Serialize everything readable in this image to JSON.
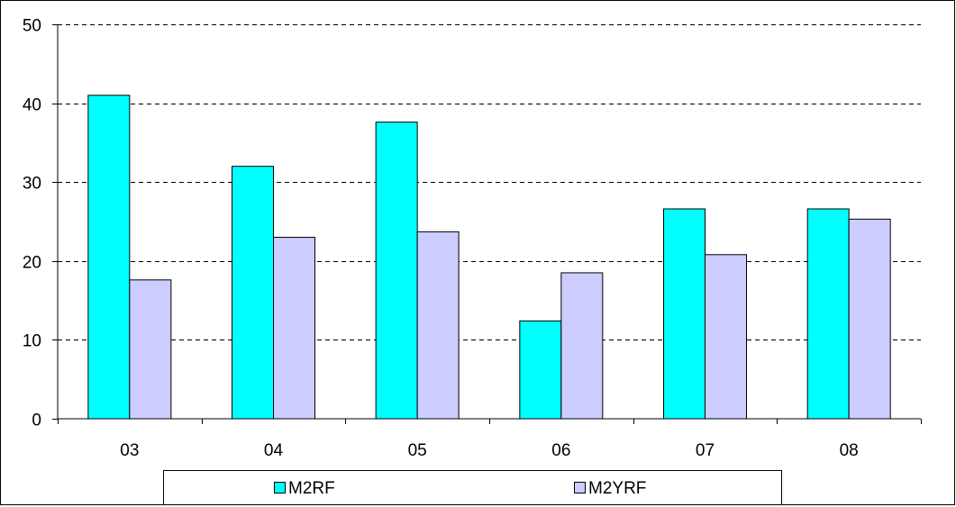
{
  "chart_data": {
    "type": "bar",
    "title": "",
    "xlabel": "",
    "ylabel": "",
    "categories": [
      "03",
      "04",
      "05",
      "06",
      "07",
      "08"
    ],
    "series": [
      {
        "name": "M2RF",
        "color": "#00FFFF",
        "values": [
          41.0,
          32.0,
          37.6,
          12.4,
          26.6,
          26.6
        ]
      },
      {
        "name": "M2YRF",
        "color": "#CCCCFF",
        "values": [
          17.6,
          23.0,
          23.7,
          18.5,
          20.8,
          25.3
        ]
      }
    ],
    "ylim": [
      0,
      50
    ],
    "yticks": [
      0,
      10,
      20,
      30,
      40,
      50
    ],
    "grid": true,
    "legend_position": "bottom"
  }
}
